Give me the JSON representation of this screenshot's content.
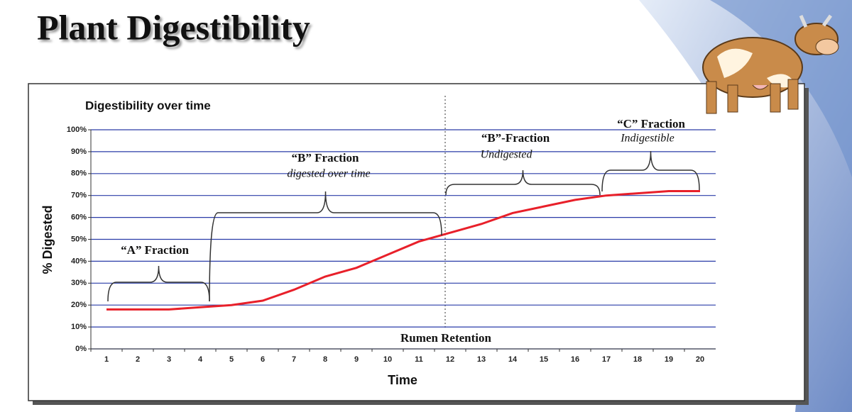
{
  "slide_title": "Plant Digestibility",
  "chart_data": {
    "type": "line",
    "title": "Digestibility over time",
    "x_label": "Time",
    "y_label": "% Digested",
    "categories": [
      "1",
      "2",
      "3",
      "4",
      "5",
      "6",
      "7",
      "8",
      "9",
      "10",
      "11",
      "12",
      "13",
      "14",
      "15",
      "16",
      "17",
      "18",
      "19",
      "20"
    ],
    "values": [
      18,
      18,
      18,
      19,
      20,
      22,
      27,
      33,
      37,
      43,
      49,
      53,
      57,
      62,
      65,
      68,
      70,
      71,
      72,
      72
    ],
    "color": "#e8202a",
    "ylim": [
      0,
      100
    ],
    "yticks": [
      {
        "value": 0,
        "label": "0%"
      },
      {
        "value": 10,
        "label": "10%"
      },
      {
        "value": 20,
        "label": "20%"
      },
      {
        "value": 30,
        "label": "30%"
      },
      {
        "value": 40,
        "label": "40%"
      },
      {
        "value": 50,
        "label": "50%"
      },
      {
        "value": 60,
        "label": "60%"
      },
      {
        "value": 70,
        "label": "70%"
      },
      {
        "value": 80,
        "label": "80%"
      },
      {
        "value": 90,
        "label": "90%"
      },
      {
        "value": 100,
        "label": "100%"
      }
    ],
    "grid": true,
    "grid_color": "#2a3ca8",
    "annotations": [
      "“A” Fraction",
      "“B” Fraction",
      "digested over time",
      "“B”-Fraction",
      "Undigested",
      "“C” Fraction",
      "Indigestible",
      "Rumen Retention"
    ]
  }
}
